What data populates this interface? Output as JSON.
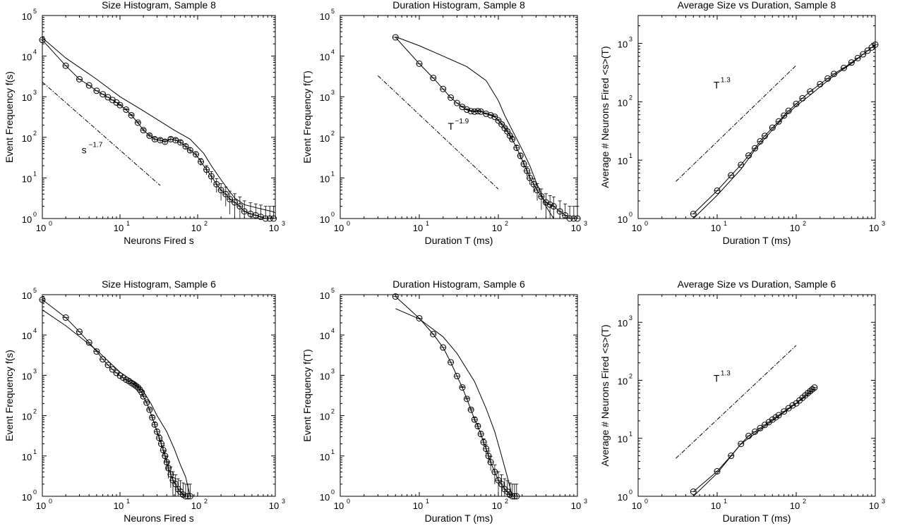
{
  "chart_data": [
    {
      "type": "scatter",
      "title": "Size Histogram, Sample 8",
      "xlabel": "Neurons Fired s",
      "ylabel": "Event Frequency f(s)",
      "x_scale": "log",
      "y_scale": "log",
      "xlim": [
        1,
        1000
      ],
      "ylim": [
        1,
        100000
      ],
      "grid": false,
      "annotations": [
        {
          "text": "s",
          "exponent": "−1.7",
          "x": 3.2,
          "y": 40
        }
      ],
      "reference_line": {
        "x": [
          1,
          33
        ],
        "y": [
          2300,
          6.5
        ]
      },
      "series": [
        {
          "marker": "circle",
          "error_bars": true,
          "x": [
            1,
            2,
            3,
            4,
            5,
            6,
            7,
            8,
            9,
            10,
            12,
            14,
            17,
            20,
            24,
            28,
            33,
            38,
            45,
            52,
            60,
            70,
            80,
            95,
            110,
            130,
            150,
            175,
            200,
            230,
            260,
            300,
            350,
            400,
            480,
            560,
            650,
            750,
            850,
            950
          ],
          "y": [
            25000,
            5800,
            2700,
            1900,
            1400,
            1150,
            970,
            830,
            720,
            620,
            480,
            350,
            230,
            150,
            110,
            90,
            85,
            78,
            90,
            85,
            75,
            60,
            48,
            38,
            25,
            16,
            11,
            7,
            5,
            4,
            3,
            2.5,
            2,
            1.5,
            1.3,
            1.2,
            1.1,
            1,
            1,
            1
          ]
        },
        {
          "marker": "none",
          "x": [
            1,
            2,
            5,
            10,
            20,
            50,
            80,
            120,
            150,
            200,
            250,
            300,
            400,
            600,
            900,
            1000
          ],
          "y": [
            28000,
            9000,
            2700,
            1000,
            450,
            150,
            90,
            40,
            20,
            9,
            5,
            3.2,
            2.2,
            1.8,
            1.5,
            1.4
          ]
        }
      ]
    },
    {
      "type": "scatter",
      "title": "Duration Histogram, Sample 8",
      "xlabel": "Duration T (ms)",
      "ylabel": "Event Frequency f(T)",
      "x_scale": "log",
      "y_scale": "log",
      "xlim": [
        1,
        1000
      ],
      "ylim": [
        1,
        100000
      ],
      "grid": false,
      "annotations": [
        {
          "text": "T",
          "exponent": "−1.9",
          "x": 23,
          "y": 155
        }
      ],
      "reference_line": {
        "x": [
          3,
          100
        ],
        "y": [
          3300,
          5.3
        ]
      },
      "series": [
        {
          "marker": "circle",
          "error_bars": true,
          "x": [
            5,
            10,
            15,
            20,
            25,
            30,
            35,
            40,
            45,
            50,
            55,
            60,
            70,
            80,
            90,
            100,
            110,
            120,
            130,
            140,
            150,
            170,
            190,
            210,
            230,
            250,
            280,
            310,
            350,
            400,
            450,
            500,
            600,
            700,
            800,
            900,
            1000
          ],
          "y": [
            29000,
            6500,
            2900,
            1550,
            950,
            700,
            560,
            480,
            440,
            430,
            440,
            430,
            380,
            350,
            320,
            260,
            210,
            170,
            140,
            110,
            90,
            55,
            35,
            22,
            15,
            10,
            7,
            5,
            3.5,
            2.5,
            2.2,
            2,
            1.5,
            1.2,
            1,
            1,
            1
          ]
        },
        {
          "marker": "none",
          "x": [
            5,
            10,
            20,
            40,
            70,
            100,
            120,
            150,
            200,
            250,
            300,
            350,
            400,
            500
          ],
          "y": [
            30000,
            18000,
            10000,
            5500,
            2500,
            800,
            350,
            150,
            50,
            20,
            8,
            4,
            2,
            1
          ]
        }
      ]
    },
    {
      "type": "scatter",
      "title": "Average Size vs Duration, Sample 8",
      "xlabel": "Duration T (ms)",
      "ylabel": "Average # Neurons Fired <s>(T)",
      "x_scale": "log",
      "y_scale": "log",
      "xlim": [
        1,
        1000
      ],
      "ylim": [
        1,
        3000
      ],
      "grid": false,
      "annotations": [
        {
          "text": "T",
          "exponent": "1.3",
          "x": 9,
          "y": 170
        }
      ],
      "reference_line": {
        "x": [
          3,
          100
        ],
        "y": [
          4.3,
          420
        ]
      },
      "series": [
        {
          "marker": "circle",
          "x": [
            5,
            10,
            15,
            20,
            25,
            30,
            35,
            40,
            50,
            60,
            70,
            80,
            100,
            120,
            150,
            200,
            250,
            300,
            400,
            500,
            600,
            700,
            800,
            900,
            1000
          ],
          "y": [
            1.2,
            3,
            5.5,
            8.3,
            12,
            16,
            21,
            26,
            36,
            46,
            58,
            70,
            92,
            115,
            150,
            200,
            250,
            300,
            380,
            470,
            560,
            650,
            750,
            850,
            950
          ]
        },
        {
          "marker": "none",
          "x": [
            5,
            10,
            20,
            30,
            50,
            70,
            100,
            150,
            200,
            300,
            500,
            700,
            1000
          ],
          "y": [
            1,
            2.5,
            7,
            15,
            33,
            55,
            85,
            130,
            180,
            280,
            450,
            650,
            950
          ]
        }
      ]
    },
    {
      "type": "scatter",
      "title": "Size Histogram, Sample 6",
      "xlabel": "Neurons Fired s",
      "ylabel": "Event Frequency f(s)",
      "x_scale": "log",
      "y_scale": "log",
      "xlim": [
        1,
        1000
      ],
      "ylim": [
        1,
        100000
      ],
      "grid": false,
      "annotations": [],
      "reference_line": null,
      "series": [
        {
          "marker": "circle",
          "error_bars": true,
          "x": [
            1,
            2,
            3,
            4,
            5,
            6,
            7,
            8,
            9,
            10,
            11,
            12,
            13,
            14,
            15,
            16,
            17,
            18,
            19,
            20,
            22,
            24,
            26,
            28,
            30,
            32,
            34,
            36,
            38,
            40,
            42,
            45,
            48,
            52,
            56,
            60,
            65,
            70,
            75,
            80
          ],
          "y": [
            75000,
            27000,
            12000,
            6500,
            3900,
            2500,
            1800,
            1400,
            1150,
            980,
            870,
            780,
            720,
            650,
            600,
            550,
            500,
            440,
            380,
            300,
            210,
            140,
            90,
            60,
            40,
            28,
            20,
            14,
            10,
            7,
            5,
            3.5,
            2.5,
            2,
            1.5,
            1.3,
            1.1,
            1,
            1,
            1
          ]
        },
        {
          "marker": "none",
          "x": [
            1,
            2,
            5,
            10,
            15,
            20,
            25,
            30,
            40,
            50,
            60,
            70,
            80
          ],
          "y": [
            42000,
            17000,
            4200,
            1200,
            700,
            400,
            200,
            100,
            40,
            15,
            6,
            3,
            1
          ]
        }
      ]
    },
    {
      "type": "scatter",
      "title": "Duration Histogram, Sample 6",
      "xlabel": "Duration T (ms)",
      "ylabel": "Event Frequency f(T)",
      "x_scale": "log",
      "y_scale": "log",
      "xlim": [
        1,
        1000
      ],
      "ylim": [
        1,
        100000
      ],
      "grid": false,
      "annotations": [],
      "reference_line": null,
      "series": [
        {
          "marker": "circle",
          "error_bars": true,
          "x": [
            5,
            10,
            15,
            20,
            25,
            30,
            35,
            40,
            45,
            50,
            55,
            60,
            65,
            70,
            75,
            80,
            90,
            100,
            110,
            120,
            130,
            140,
            150,
            160,
            170
          ],
          "y": [
            90000,
            26000,
            10500,
            4900,
            2100,
            960,
            500,
            260,
            140,
            80,
            55,
            35,
            22,
            15,
            10,
            7,
            4,
            2.5,
            2,
            1.5,
            1.3,
            1.1,
            1,
            1,
            1
          ]
        },
        {
          "marker": "none",
          "x": [
            5,
            10,
            20,
            30,
            50,
            70,
            90,
            110,
            130,
            150
          ],
          "y": [
            45000,
            25000,
            9000,
            3500,
            700,
            150,
            40,
            10,
            3,
            1
          ]
        }
      ]
    },
    {
      "type": "scatter",
      "title": "Average Size vs Duration, Sample 6",
      "xlabel": "Duration T (ms)",
      "ylabel": "Average # Neurons Fired <s>(T)",
      "x_scale": "log",
      "y_scale": "log",
      "xlim": [
        1,
        1000
      ],
      "ylim": [
        1,
        3000
      ],
      "grid": false,
      "annotations": [
        {
          "text": "T",
          "exponent": "1.3",
          "x": 9,
          "y": 95
        }
      ],
      "reference_line": {
        "x": [
          3,
          100
        ],
        "y": [
          4.5,
          400
        ]
      },
      "series": [
        {
          "marker": "circle",
          "x": [
            5,
            10,
            15,
            20,
            25,
            30,
            35,
            40,
            45,
            50,
            55,
            60,
            70,
            80,
            90,
            100,
            110,
            120,
            130,
            140,
            150,
            160,
            170
          ],
          "y": [
            1.2,
            2.7,
            5,
            8,
            11,
            13,
            15,
            17,
            19,
            21,
            23,
            25,
            29,
            33,
            37,
            40,
            45,
            50,
            55,
            60,
            65,
            70,
            75
          ]
        },
        {
          "marker": "none",
          "x": [
            5,
            10,
            20,
            30,
            50,
            70,
            100,
            130,
            170
          ],
          "y": [
            1,
            2.5,
            8,
            12,
            20,
            28,
            40,
            52,
            70
          ]
        }
      ]
    }
  ]
}
